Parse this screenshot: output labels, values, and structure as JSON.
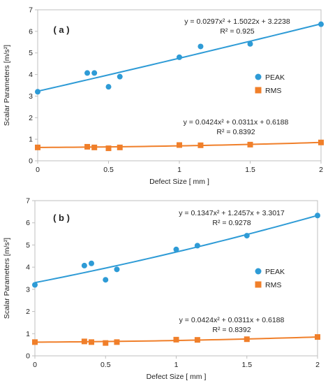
{
  "chart_data": [
    {
      "type": "scatter",
      "panel_label": "( a )",
      "xlabel": "Defect Size  [ mm ]",
      "ylabel": "Scalar Parameters [m/s²]",
      "xlim": [
        0,
        2
      ],
      "ylim": [
        0,
        7
      ],
      "x_ticks": [
        "0",
        "0.5",
        "1",
        "1.5",
        "2"
      ],
      "y_ticks": [
        "0",
        "1",
        "2",
        "3",
        "4",
        "5",
        "6",
        "7"
      ],
      "grid": false,
      "legend_placement": "right",
      "series": [
        {
          "name": "PEAK",
          "color": "#2e9bd6",
          "marker": "circle",
          "x": [
            0,
            0.35,
            0.4,
            0.5,
            0.58,
            1,
            1.15,
            1.5,
            2
          ],
          "y": [
            3.2,
            4.07,
            4.07,
            3.43,
            3.9,
            4.8,
            5.3,
            5.42,
            6.33
          ],
          "trendline": {
            "coefficients": [
              0.0297,
              1.5022,
              3.2238
            ],
            "equation": "y = 0.0297x² + 1.5022x + 3.2238",
            "r2": "R² = 0.925"
          }
        },
        {
          "name": "RMS",
          "color": "#f07f2a",
          "marker": "square",
          "x": [
            0,
            0.35,
            0.4,
            0.5,
            0.58,
            1,
            1.15,
            1.5,
            2
          ],
          "y": [
            0.62,
            0.65,
            0.62,
            0.58,
            0.62,
            0.73,
            0.72,
            0.75,
            0.85
          ],
          "trendline": {
            "coefficients": [
              0.0424,
              0.0311,
              0.6188
            ],
            "equation": "y = 0.0424x² + 0.0311x + 0.6188",
            "r2": "R² = 0.8392"
          }
        }
      ]
    },
    {
      "type": "scatter",
      "panel_label": "( b )",
      "xlabel": "Defect Size  [ mm ]",
      "ylabel": "Scalar Parameters [m/s²]",
      "xlim": [
        0,
        2
      ],
      "ylim": [
        0,
        7
      ],
      "x_ticks": [
        "0",
        "0.5",
        "1",
        "1.5",
        "2"
      ],
      "y_ticks": [
        "0",
        "1",
        "2",
        "3",
        "4",
        "5",
        "6",
        "7"
      ],
      "grid": false,
      "legend_placement": "right",
      "series": [
        {
          "name": "PEAK",
          "color": "#2e9bd6",
          "marker": "circle",
          "x": [
            0,
            0.35,
            0.4,
            0.5,
            0.58,
            1,
            1.15,
            1.5,
            2
          ],
          "y": [
            3.2,
            4.07,
            4.17,
            3.43,
            3.9,
            4.8,
            4.97,
            5.42,
            6.33
          ],
          "trendline": {
            "coefficients": [
              0.1347,
              1.2457,
              3.3017
            ],
            "equation": "y = 0.1347x² + 1.2457x + 3.3017",
            "r2": "R² = 0.9278"
          }
        },
        {
          "name": "RMS",
          "color": "#f07f2a",
          "marker": "square",
          "x": [
            0,
            0.35,
            0.4,
            0.5,
            0.58,
            1,
            1.15,
            1.5,
            2
          ],
          "y": [
            0.62,
            0.65,
            0.62,
            0.58,
            0.62,
            0.73,
            0.72,
            0.75,
            0.85
          ],
          "trendline": {
            "coefficients": [
              0.0424,
              0.0311,
              0.6188
            ],
            "equation": "y = 0.0424x² + 0.0311x + 0.6188",
            "r2": "R² = 0.8392"
          }
        }
      ]
    }
  ]
}
